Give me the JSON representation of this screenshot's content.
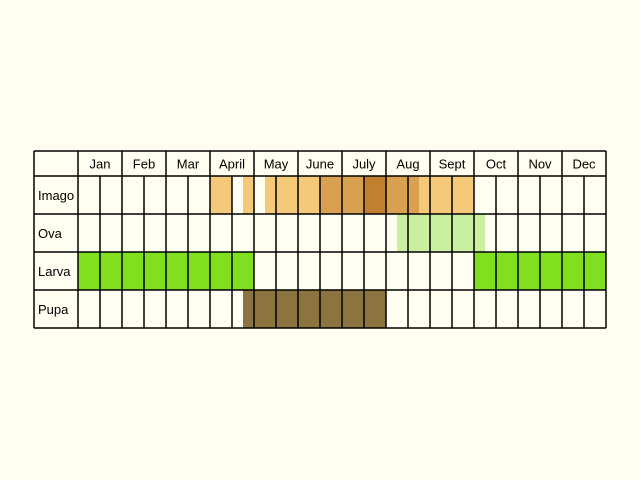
{
  "months": [
    "Jan",
    "Feb",
    "Mar",
    "April",
    "May",
    "June",
    "July",
    "Aug",
    "Sept",
    "Oct",
    "Nov",
    "Dec"
  ],
  "rows": [
    {
      "label": "Imago",
      "bands": [
        {
          "start": 3.0,
          "end": 3.5,
          "color": "#F5C97A"
        },
        {
          "start": 3.75,
          "end": 4.0,
          "color": "#F5C97A"
        },
        {
          "start": 4.25,
          "end": 5.5,
          "color": "#F5C97A"
        },
        {
          "start": 5.5,
          "end": 6.5,
          "color": "#D9A050"
        },
        {
          "start": 6.5,
          "end": 7.0,
          "color": "#C08030"
        },
        {
          "start": 7.0,
          "end": 7.75,
          "color": "#D9A050"
        },
        {
          "start": 7.75,
          "end": 9.0,
          "color": "#F5C97A"
        }
      ]
    },
    {
      "label": "Ova",
      "bands": [
        {
          "start": 7.25,
          "end": 9.25,
          "color": "#C8F0A0"
        }
      ]
    },
    {
      "label": "Larva",
      "bands": [
        {
          "start": 0.0,
          "end": 4.0,
          "color": "#80E020"
        },
        {
          "start": 9.0,
          "end": 12.0,
          "color": "#80E020"
        }
      ]
    },
    {
      "label": "Pupa",
      "bands": [
        {
          "start": 3.75,
          "end": 7.0,
          "color": "#8C7440"
        }
      ]
    }
  ]
}
